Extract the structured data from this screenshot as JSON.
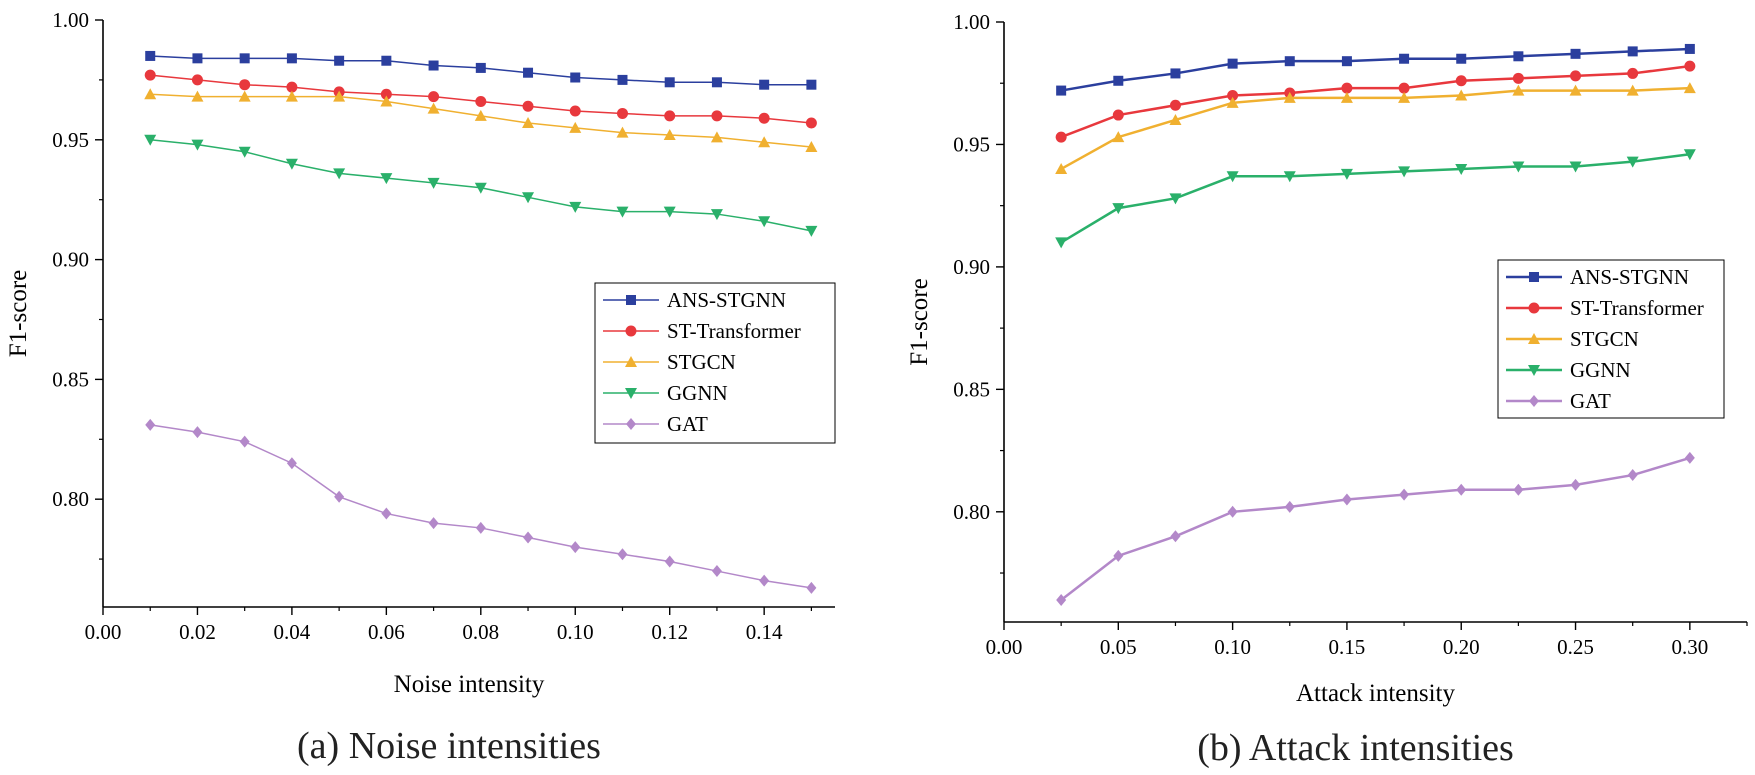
{
  "chart_data": [
    {
      "type": "line",
      "caption": "(a) Noise intensities",
      "xlabel": "Noise intensity",
      "ylabel": "F1-score",
      "xlim": [
        0,
        0.155
      ],
      "ylim": [
        0.755,
        1.0
      ],
      "x_ticks": [
        "0.00",
        "0.02",
        "0.04",
        "0.06",
        "0.08",
        "0.10",
        "0.12",
        "0.14"
      ],
      "x_tick_values": [
        0,
        0.02,
        0.04,
        0.06,
        0.08,
        0.1,
        0.12,
        0.14
      ],
      "y_ticks": [
        "0.80",
        "0.85",
        "0.90",
        "0.95",
        "1.00"
      ],
      "y_tick_values": [
        0.8,
        0.85,
        0.9,
        0.95,
        1.0
      ],
      "legend_position": "center-right",
      "x": [
        0.01,
        0.02,
        0.03,
        0.04,
        0.05,
        0.06,
        0.07,
        0.08,
        0.09,
        0.1,
        0.11,
        0.12,
        0.13,
        0.14,
        0.15
      ],
      "series": [
        {
          "name": "ANS-STGNN",
          "color": "#2b3f9e",
          "marker": "square",
          "values": [
            0.985,
            0.984,
            0.984,
            0.984,
            0.983,
            0.983,
            0.981,
            0.98,
            0.978,
            0.976,
            0.975,
            0.974,
            0.974,
            0.973,
            0.973
          ]
        },
        {
          "name": "ST-Transformer",
          "color": "#e8383d",
          "marker": "circle",
          "values": [
            0.977,
            0.975,
            0.973,
            0.972,
            0.97,
            0.969,
            0.968,
            0.966,
            0.964,
            0.962,
            0.961,
            0.96,
            0.96,
            0.959,
            0.957
          ]
        },
        {
          "name": "STGCN",
          "color": "#f0b030",
          "marker": "triangle-up",
          "values": [
            0.969,
            0.968,
            0.968,
            0.968,
            0.968,
            0.966,
            0.963,
            0.96,
            0.957,
            0.955,
            0.953,
            0.952,
            0.951,
            0.949,
            0.947
          ]
        },
        {
          "name": "GGNN",
          "color": "#2ab06a",
          "marker": "triangle-down",
          "values": [
            0.95,
            0.948,
            0.945,
            0.94,
            0.936,
            0.934,
            0.932,
            0.93,
            0.926,
            0.922,
            0.92,
            0.92,
            0.919,
            0.916,
            0.912
          ]
        },
        {
          "name": "GAT",
          "color": "#b388c9",
          "marker": "diamond",
          "values": [
            0.831,
            0.828,
            0.824,
            0.815,
            0.801,
            0.794,
            0.79,
            0.788,
            0.784,
            0.78,
            0.777,
            0.774,
            0.77,
            0.766,
            0.763
          ]
        }
      ]
    },
    {
      "type": "line",
      "caption": "(b) Attack intensities",
      "xlabel": "Attack intensity",
      "ylabel": "F1-score",
      "xlim": [
        0,
        0.325
      ],
      "ylim": [
        0.755,
        1.0
      ],
      "x_ticks": [
        "0.00",
        "0.05",
        "0.10",
        "0.15",
        "0.20",
        "0.25",
        "0.30"
      ],
      "x_tick_values": [
        0,
        0.05,
        0.1,
        0.15,
        0.2,
        0.25,
        0.3
      ],
      "y_ticks": [
        "0.80",
        "0.85",
        "0.90",
        "0.95",
        "1.00"
      ],
      "y_tick_values": [
        0.8,
        0.85,
        0.9,
        0.95,
        1.0
      ],
      "legend_position": "center-right",
      "x": [
        0.025,
        0.05,
        0.075,
        0.1,
        0.125,
        0.15,
        0.175,
        0.2,
        0.225,
        0.25,
        0.275,
        0.3
      ],
      "series": [
        {
          "name": "ANS-STGNN",
          "color": "#2b3f9e",
          "marker": "square",
          "values": [
            0.972,
            0.976,
            0.979,
            0.983,
            0.984,
            0.984,
            0.985,
            0.985,
            0.986,
            0.987,
            0.988,
            0.989
          ]
        },
        {
          "name": "ST-Transformer",
          "color": "#e8383d",
          "marker": "circle",
          "values": [
            0.953,
            0.962,
            0.966,
            0.97,
            0.971,
            0.973,
            0.973,
            0.976,
            0.977,
            0.978,
            0.979,
            0.982
          ]
        },
        {
          "name": "STGCN",
          "color": "#f0b030",
          "marker": "triangle-up",
          "values": [
            0.94,
            0.953,
            0.96,
            0.967,
            0.969,
            0.969,
            0.969,
            0.97,
            0.972,
            0.972,
            0.972,
            0.973
          ]
        },
        {
          "name": "GGNN",
          "color": "#2ab06a",
          "marker": "triangle-down",
          "values": [
            0.91,
            0.924,
            0.928,
            0.937,
            0.937,
            0.938,
            0.939,
            0.94,
            0.941,
            0.941,
            0.943,
            0.946
          ]
        },
        {
          "name": "GAT",
          "color": "#b388c9",
          "marker": "diamond",
          "values": [
            0.764,
            0.782,
            0.79,
            0.8,
            0.802,
            0.805,
            0.807,
            0.809,
            0.809,
            0.811,
            0.815,
            0.822
          ]
        }
      ]
    }
  ]
}
